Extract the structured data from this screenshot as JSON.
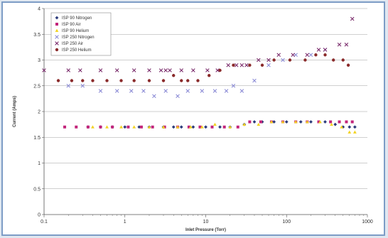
{
  "chart_data": {
    "type": "scatter",
    "title": "",
    "xlabel": "Inlet Pressure (Torr)",
    "ylabel": "Current (Amps)",
    "xscale": "log",
    "xlim": [
      0.1,
      1000
    ],
    "ylim": [
      0,
      4
    ],
    "xticks": [
      "0.1",
      "1",
      "10",
      "100",
      "1000"
    ],
    "yticks": [
      "0",
      "0.5",
      "1",
      "1.5",
      "2",
      "2.5",
      "3",
      "3.5",
      "4"
    ],
    "grid": "horizontal",
    "legend_position": "top-left",
    "series": [
      {
        "name": "ISP 90 Nitrogen",
        "marker": "diamond",
        "color": "#2b3a7a",
        "x": [
          0.35,
          0.5,
          0.7,
          1,
          1.5,
          2,
          3,
          4,
          5,
          7,
          10,
          15,
          20,
          30,
          40,
          50,
          70,
          100,
          150,
          200,
          300,
          400,
          500,
          600,
          700
        ],
        "y": [
          1.7,
          1.7,
          1.7,
          1.7,
          1.7,
          1.7,
          1.7,
          1.7,
          1.7,
          1.7,
          1.7,
          1.7,
          1.7,
          1.75,
          1.8,
          1.8,
          1.8,
          1.8,
          1.8,
          1.8,
          1.8,
          1.75,
          1.7,
          1.7,
          1.7
        ]
      },
      {
        "name": "ISP 90 Air",
        "marker": "square",
        "color": "#c2247a",
        "x": [
          0.18,
          0.25,
          0.35,
          0.5,
          0.7,
          1.1,
          1.6,
          2.2,
          3.1,
          4.5,
          6.2,
          8.5,
          12,
          17,
          25,
          35,
          48,
          65,
          90,
          130,
          180,
          250,
          350,
          450,
          550,
          650
        ],
        "y": [
          1.7,
          1.7,
          1.7,
          1.7,
          1.7,
          1.7,
          1.7,
          1.7,
          1.7,
          1.7,
          1.7,
          1.7,
          1.7,
          1.7,
          1.7,
          1.8,
          1.8,
          1.8,
          1.8,
          1.8,
          1.8,
          1.8,
          1.8,
          1.8,
          1.8,
          1.8
        ]
      },
      {
        "name": "ISP 90 Helium",
        "marker": "triangle",
        "color": "#f2d21e",
        "x": [
          0.4,
          0.6,
          0.9,
          1.3,
          2,
          3,
          4.5,
          6.5,
          9,
          13,
          20,
          30,
          45,
          65,
          90,
          130,
          180,
          260,
          360,
          480,
          600,
          700
        ],
        "y": [
          1.7,
          1.7,
          1.7,
          1.7,
          1.7,
          1.7,
          1.7,
          1.7,
          1.7,
          1.75,
          1.7,
          1.75,
          1.75,
          1.8,
          1.8,
          1.8,
          1.8,
          1.8,
          1.75,
          1.7,
          1.6,
          1.6
        ]
      },
      {
        "name": "ISP 250 Nitrogen",
        "marker": "x",
        "color": "#8c8cd6",
        "x": [
          0.2,
          0.3,
          0.5,
          0.8,
          1.2,
          1.7,
          2.3,
          3.2,
          4.5,
          6,
          9,
          13,
          18,
          22,
          28,
          40,
          60,
          90,
          130,
          200,
          300
        ],
        "y": [
          2.5,
          2.5,
          2.4,
          2.4,
          2.4,
          2.4,
          2.3,
          2.4,
          2.3,
          2.4,
          2.4,
          2.4,
          2.4,
          2.5,
          2.4,
          2.6,
          2.9,
          3.0,
          3.1,
          3.1,
          3.2
        ]
      },
      {
        "name": "ISP 250 Air",
        "marker": "x",
        "color": "#7a2b6b",
        "x": [
          0.1,
          0.2,
          0.28,
          0.5,
          0.8,
          1.3,
          2,
          2.8,
          3.2,
          3.6,
          5,
          7,
          10.5,
          14,
          19,
          24,
          28,
          32,
          45,
          60,
          80,
          120,
          180,
          250,
          300,
          450,
          550,
          650
        ],
        "y": [
          2.8,
          2.8,
          2.8,
          2.8,
          2.8,
          2.8,
          2.8,
          2.8,
          2.8,
          2.8,
          2.8,
          2.8,
          2.8,
          2.8,
          2.9,
          2.9,
          2.9,
          2.9,
          3.0,
          3.0,
          3.1,
          3.1,
          3.1,
          3.2,
          3.2,
          3.3,
          3.3,
          3.8
        ]
      },
      {
        "name": "ISP 250 Helium",
        "marker": "circle",
        "color": "#8a2a2a",
        "x": [
          0.15,
          0.22,
          0.3,
          0.4,
          0.6,
          0.9,
          1.3,
          2,
          3,
          4,
          5,
          6,
          8,
          11,
          15,
          22,
          35,
          50,
          70,
          110,
          170,
          230,
          300,
          380,
          500,
          580
        ],
        "y": [
          2.6,
          2.6,
          2.6,
          2.6,
          2.6,
          2.6,
          2.6,
          2.6,
          2.6,
          2.7,
          2.6,
          2.6,
          2.6,
          2.7,
          2.8,
          2.9,
          2.9,
          2.9,
          3.0,
          3.0,
          3.0,
          3.1,
          3.1,
          3.0,
          3.0,
          2.9
        ]
      }
    ]
  }
}
